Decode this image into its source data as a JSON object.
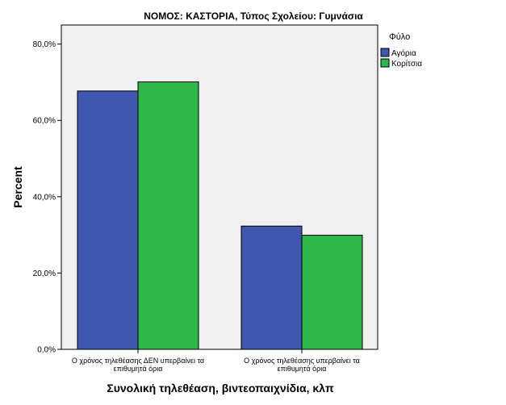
{
  "chart_data": {
    "type": "bar",
    "title": "ΝΟΜΟΣ: ΚΑΣΤΟΡΙΑ, Τύπος Σχολείου: Γυμνάσια",
    "xlabel": "Συνολική τηλεθέαση, βιντεοπαιχνίδια, κλπ",
    "ylabel": "Percent",
    "ylim": [
      0,
      85
    ],
    "yticks": [
      0,
      20,
      40,
      60,
      80
    ],
    "ytick_labels": [
      "0,0%",
      "20,0%",
      "40,0%",
      "60,0%",
      "80,0%"
    ],
    "categories": [
      [
        "Ο χρόνος τηλεθέασης ΔΕΝ υπερβαίνει τα",
        "επιθυμητά όρια"
      ],
      [
        "Ο χρόνος τηλεθέασης υπερβαίνει τα",
        "επιθυμητά όρια"
      ]
    ],
    "legend_title": "Φύλο",
    "legend_position": "right",
    "grid": false,
    "series": [
      {
        "name": "Αγόρια",
        "color": "#3f58ad",
        "values": [
          67.7,
          32.3
        ]
      },
      {
        "name": "Κορίτσια",
        "color": "#2fb84a",
        "values": [
          70.1,
          29.9
        ]
      }
    ],
    "plot_background": "#f0f0f0"
  }
}
